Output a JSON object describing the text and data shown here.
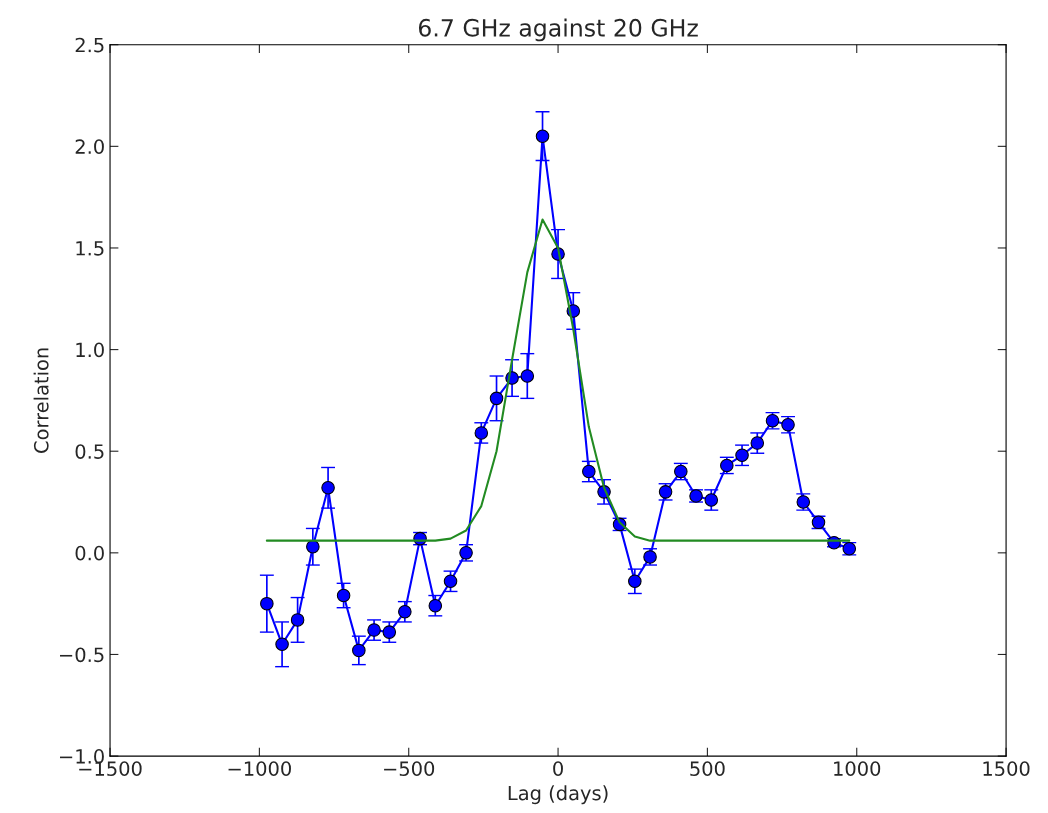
{
  "chart_data": {
    "type": "line",
    "title": "6.7 GHz against 20 GHz",
    "xlabel": "Lag (days)",
    "ylabel": "Correlation",
    "xlim": [
      -1500,
      1500
    ],
    "xticks": [
      {
        "value": -1500,
        "label": "−1500"
      },
      {
        "value": -1000,
        "label": "−1000"
      },
      {
        "value": -500,
        "label": "−500"
      },
      0,
      500,
      1000,
      1500
    ],
    "ylim": [
      -1.0,
      2.5
    ],
    "yticks": [
      {
        "value": -1.0,
        "label": "−1.0"
      },
      {
        "value": -0.5,
        "label": "−0.5"
      },
      {
        "value": 0,
        "label": "0.0"
      },
      {
        "value": 0.5,
        "label": "0.5"
      },
      {
        "value": 1.0,
        "label": "1.0"
      },
      {
        "value": 1.5,
        "label": "1.5"
      },
      {
        "value": 2.0,
        "label": "2.0"
      },
      {
        "value": 2.5,
        "label": "2.5"
      }
    ],
    "grid": false,
    "series": [
      {
        "color": "#0000ff",
        "marker": "circle",
        "x": [
          -975,
          -924,
          -872,
          -821,
          -770,
          -718,
          -667,
          -616,
          -565,
          -513,
          -462,
          -411,
          -360,
          -308,
          -257,
          -206,
          -154,
          -103,
          -52,
          0,
          51,
          103,
          154,
          206,
          257,
          308,
          360,
          411,
          462,
          513,
          565,
          616,
          667,
          718,
          770,
          821,
          872,
          924,
          975
        ],
        "values": [
          -0.25,
          -0.45,
          -0.33,
          0.03,
          0.32,
          -0.21,
          -0.48,
          -0.38,
          -0.39,
          -0.29,
          0.07,
          -0.26,
          -0.14,
          0.0,
          0.59,
          0.76,
          0.86,
          0.87,
          2.05,
          1.47,
          1.19,
          0.4,
          0.3,
          0.14,
          -0.14,
          -0.02,
          0.3,
          0.4,
          0.28,
          0.26,
          0.43,
          0.48,
          0.54,
          0.65,
          0.63,
          0.25,
          0.15,
          0.05,
          0.02
        ],
        "errors": [
          0.14,
          0.11,
          0.11,
          0.09,
          0.1,
          0.06,
          0.07,
          0.05,
          0.05,
          0.05,
          0.03,
          0.05,
          0.05,
          0.04,
          0.05,
          0.11,
          0.09,
          0.11,
          0.12,
          0.12,
          0.09,
          0.05,
          0.06,
          0.03,
          0.06,
          0.04,
          0.04,
          0.04,
          0.03,
          0.05,
          0.04,
          0.05,
          0.05,
          0.04,
          0.04,
          0.04,
          0.03,
          0.02,
          0.03
        ]
      },
      {
        "color": "#228b22",
        "marker": "none",
        "x": [
          -975,
          -411,
          -360,
          -308,
          -257,
          -206,
          -154,
          -103,
          -52,
          0,
          51,
          103,
          154,
          206,
          257,
          308,
          975
        ],
        "values": [
          0.06,
          0.06,
          0.07,
          0.11,
          0.23,
          0.5,
          0.95,
          1.38,
          1.64,
          1.5,
          1.1,
          0.62,
          0.32,
          0.15,
          0.08,
          0.06,
          0.06
        ]
      }
    ]
  }
}
